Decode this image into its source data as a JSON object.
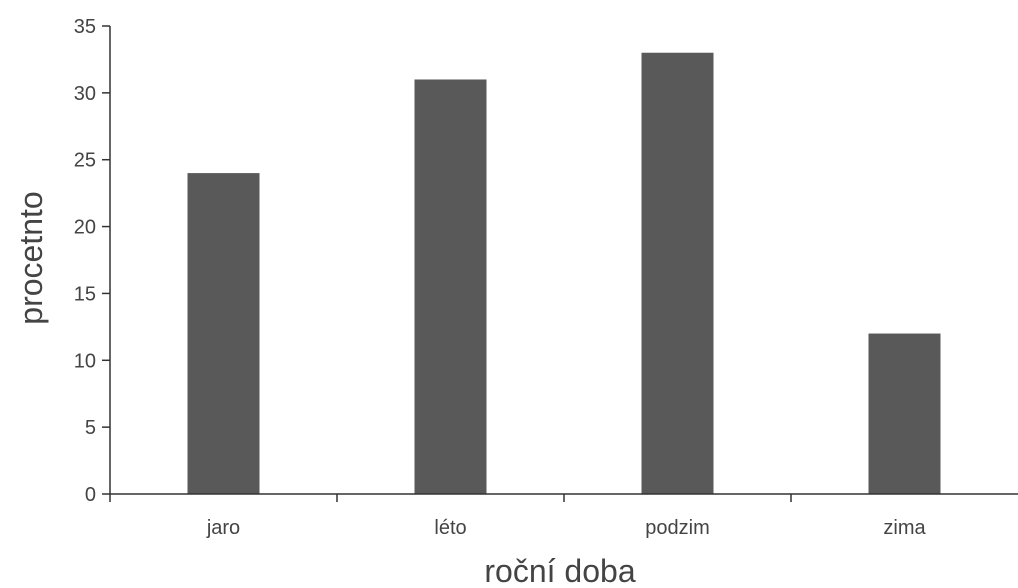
{
  "chart_data": {
    "type": "bar",
    "categories": [
      "jaro",
      "léto",
      "podzim",
      "zima"
    ],
    "values": [
      24,
      31,
      33,
      12
    ],
    "title": "",
    "xlabel": "roční doba",
    "ylabel": "procetnto",
    "ylim": [
      0,
      35
    ],
    "yticks": [
      0,
      5,
      10,
      15,
      20,
      25,
      30,
      35
    ],
    "grid": false,
    "legend": "none",
    "bar_color": "#595959",
    "axis_color": "#333333",
    "text_color": "#444444"
  }
}
